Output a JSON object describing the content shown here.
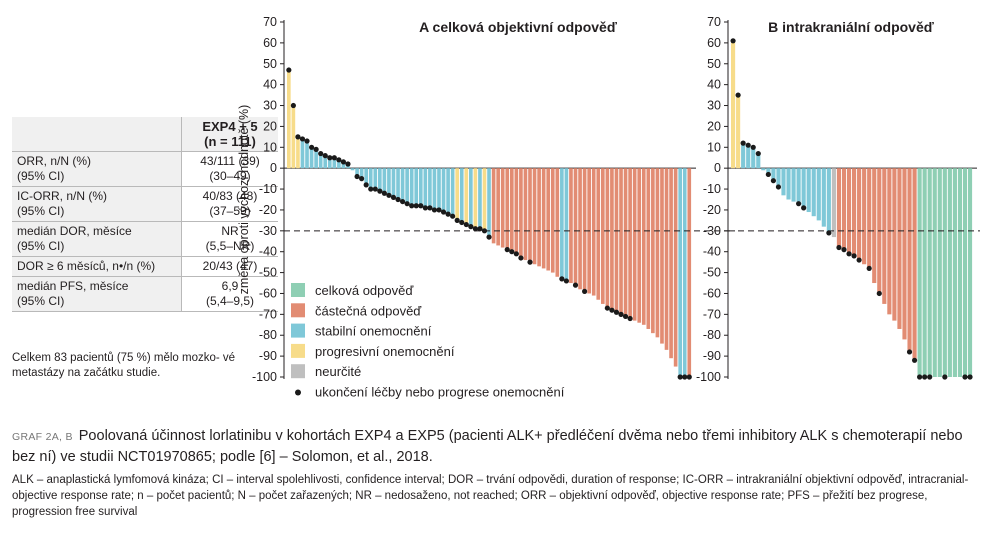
{
  "stats_table": {
    "header": [
      "EXP4 + 5",
      "(n = 111)"
    ],
    "rows": [
      {
        "label": "ORR, n/N (%)",
        "label2": "(95% CI)",
        "value": "43/111 (39)",
        "value2": "(30–49)"
      },
      {
        "label": "IC-ORR, n/N (%)",
        "label2": "(95% CI)",
        "value": "40/83 (48)",
        "value2": "(37–59)"
      },
      {
        "label": "medián DOR, měsíce",
        "label2": "(95% CI)",
        "value": "NR",
        "value2": "(5,5–NR)"
      },
      {
        "label": "DOR ≥ 6 měsíců, n•/n (%)",
        "label2": "",
        "value": "20/43 (47)",
        "value2": ""
      },
      {
        "label": "medián PFS, měsíce",
        "label2": "(95% CI)",
        "value": "6,9",
        "value2": "(5,4–9,5)"
      }
    ],
    "note": "Celkem 83 pacientů (75 %) mělo mozko- vé metastázy na začátku studie."
  },
  "caption": {
    "tag": "GRAF 2A, B",
    "text": "Poolovaná účinnost lorlatinibu v kohortách EXP4 a EXP5 (pacienti ALK+ předléčení dvěma nebo třemi inhibitory ALK s chemoterapií nebo bez ní) ve studii NCT01970865; podle [6] – Solomon, et al., 2018."
  },
  "abbreviations": "ALK – anaplastická lymfomová kináza; CI – interval spolehlivosti, confidence interval; DOR – trvání odpovědi, duration of response; IC-ORR – intrakraniální objektivní odpověď, intracranial-objective response rate; n – počet pacientů; N – počet zařazených; NR – nedosaženo, not reached; ORR – objektivní odpověď, objective response rate; PFS – přežití bez progrese, progression free survival",
  "colors": {
    "CR": "#8fcfb4",
    "PR": "#e28c73",
    "SD": "#7fc8d8",
    "PD": "#f7dc8a",
    "NE": "#bfbfbf",
    "marker": "#1a1a1a"
  },
  "chart_data": [
    {
      "type": "bar",
      "title": "A  celková objektivní odpověď",
      "ylabel": "změna oproti výchozí hodnotě (%)",
      "ylim": [
        -100,
        70
      ],
      "yticks": [
        70,
        60,
        50,
        40,
        30,
        20,
        10,
        0,
        -10,
        -20,
        -30,
        -40,
        -50,
        -60,
        -70,
        -80,
        -90,
        -100
      ],
      "reference_line": -30,
      "legend": [
        {
          "key": "CR",
          "label": "celková odpověď"
        },
        {
          "key": "PR",
          "label": "částečná odpověď"
        },
        {
          "key": "SD",
          "label": "stabilní onemocnění"
        },
        {
          "key": "PD",
          "label": "progresivní onemocnění"
        },
        {
          "key": "NE",
          "label": "neurčité"
        },
        {
          "key": "marker",
          "label": "ukončení léčby nebo progrese onemocnění"
        }
      ],
      "bars": [
        {
          "v": 47,
          "c": "PD",
          "m": true
        },
        {
          "v": 30,
          "c": "PD",
          "m": true
        },
        {
          "v": 15,
          "c": "PD",
          "m": true
        },
        {
          "v": 14,
          "c": "SD",
          "m": true
        },
        {
          "v": 13,
          "c": "SD",
          "m": true
        },
        {
          "v": 10,
          "c": "SD",
          "m": true
        },
        {
          "v": 9,
          "c": "SD",
          "m": true
        },
        {
          "v": 7,
          "c": "SD",
          "m": true
        },
        {
          "v": 6,
          "c": "SD",
          "m": true
        },
        {
          "v": 5,
          "c": "SD",
          "m": true
        },
        {
          "v": 5,
          "c": "SD",
          "m": true
        },
        {
          "v": 4,
          "c": "SD",
          "m": true
        },
        {
          "v": 3,
          "c": "SD",
          "m": true
        },
        {
          "v": 2,
          "c": "SD",
          "m": true
        },
        {
          "v": -1,
          "c": "SD",
          "m": false
        },
        {
          "v": -4,
          "c": "SD",
          "m": true
        },
        {
          "v": -5,
          "c": "SD",
          "m": true
        },
        {
          "v": -8,
          "c": "SD",
          "m": true
        },
        {
          "v": -10,
          "c": "SD",
          "m": true
        },
        {
          "v": -10,
          "c": "SD",
          "m": true
        },
        {
          "v": -11,
          "c": "SD",
          "m": true
        },
        {
          "v": -12,
          "c": "SD",
          "m": true
        },
        {
          "v": -13,
          "c": "SD",
          "m": true
        },
        {
          "v": -14,
          "c": "SD",
          "m": true
        },
        {
          "v": -15,
          "c": "SD",
          "m": true
        },
        {
          "v": -16,
          "c": "SD",
          "m": true
        },
        {
          "v": -17,
          "c": "SD",
          "m": true
        },
        {
          "v": -18,
          "c": "SD",
          "m": true
        },
        {
          "v": -18,
          "c": "SD",
          "m": true
        },
        {
          "v": -18,
          "c": "SD",
          "m": true
        },
        {
          "v": -19,
          "c": "SD",
          "m": true
        },
        {
          "v": -19,
          "c": "SD",
          "m": true
        },
        {
          "v": -20,
          "c": "SD",
          "m": true
        },
        {
          "v": -20,
          "c": "SD",
          "m": true
        },
        {
          "v": -21,
          "c": "SD",
          "m": true
        },
        {
          "v": -22,
          "c": "SD",
          "m": true
        },
        {
          "v": -23,
          "c": "SD",
          "m": true
        },
        {
          "v": -25,
          "c": "PD",
          "m": true
        },
        {
          "v": -26,
          "c": "SD",
          "m": true
        },
        {
          "v": -27,
          "c": "PD",
          "m": true
        },
        {
          "v": -28,
          "c": "SD",
          "m": true
        },
        {
          "v": -29,
          "c": "PD",
          "m": true
        },
        {
          "v": -29,
          "c": "SD",
          "m": true
        },
        {
          "v": -30,
          "c": "PD",
          "m": true
        },
        {
          "v": -33,
          "c": "SD",
          "m": true
        },
        {
          "v": -36,
          "c": "PR",
          "m": false
        },
        {
          "v": -37,
          "c": "PR",
          "m": false
        },
        {
          "v": -38,
          "c": "PR",
          "m": false
        },
        {
          "v": -39,
          "c": "PR",
          "m": true
        },
        {
          "v": -40,
          "c": "PR",
          "m": true
        },
        {
          "v": -41,
          "c": "PR",
          "m": true
        },
        {
          "v": -43,
          "c": "PR",
          "m": true
        },
        {
          "v": -44,
          "c": "PR",
          "m": false
        },
        {
          "v": -45,
          "c": "PR",
          "m": true
        },
        {
          "v": -46,
          "c": "PR",
          "m": false
        },
        {
          "v": -47,
          "c": "PR",
          "m": false
        },
        {
          "v": -48,
          "c": "PR",
          "m": false
        },
        {
          "v": -49,
          "c": "PR",
          "m": false
        },
        {
          "v": -50,
          "c": "PR",
          "m": false
        },
        {
          "v": -52,
          "c": "PR",
          "m": false
        },
        {
          "v": -53,
          "c": "SD",
          "m": true
        },
        {
          "v": -54,
          "c": "SD",
          "m": true
        },
        {
          "v": -55,
          "c": "PR",
          "m": false
        },
        {
          "v": -56,
          "c": "PR",
          "m": true
        },
        {
          "v": -58,
          "c": "PR",
          "m": false
        },
        {
          "v": -59,
          "c": "PR",
          "m": true
        },
        {
          "v": -60,
          "c": "PR",
          "m": false
        },
        {
          "v": -61,
          "c": "PR",
          "m": false
        },
        {
          "v": -63,
          "c": "PR",
          "m": false
        },
        {
          "v": -65,
          "c": "PR",
          "m": false
        },
        {
          "v": -67,
          "c": "PR",
          "m": true
        },
        {
          "v": -68,
          "c": "PR",
          "m": true
        },
        {
          "v": -69,
          "c": "PR",
          "m": true
        },
        {
          "v": -70,
          "c": "PR",
          "m": true
        },
        {
          "v": -71,
          "c": "PR",
          "m": true
        },
        {
          "v": -72,
          "c": "PR",
          "m": true
        },
        {
          "v": -73,
          "c": "PR",
          "m": false
        },
        {
          "v": -74,
          "c": "PR",
          "m": false
        },
        {
          "v": -75,
          "c": "PR",
          "m": false
        },
        {
          "v": -77,
          "c": "PR",
          "m": false
        },
        {
          "v": -79,
          "c": "PR",
          "m": false
        },
        {
          "v": -81,
          "c": "PR",
          "m": false
        },
        {
          "v": -84,
          "c": "PR",
          "m": false
        },
        {
          "v": -87,
          "c": "PR",
          "m": false
        },
        {
          "v": -91,
          "c": "PR",
          "m": false
        },
        {
          "v": -95,
          "c": "PR",
          "m": false
        },
        {
          "v": -100,
          "c": "SD",
          "m": true
        },
        {
          "v": -100,
          "c": "SD",
          "m": true
        },
        {
          "v": -100,
          "c": "PR",
          "m": true
        }
      ]
    },
    {
      "type": "bar",
      "title": "B  intrakraniální odpověď",
      "ylim": [
        -100,
        70
      ],
      "yticks": [
        70,
        60,
        50,
        40,
        30,
        20,
        10,
        0,
        -10,
        -20,
        -30,
        -40,
        -50,
        -60,
        -70,
        -80,
        -90,
        -100
      ],
      "reference_line": -30,
      "bars": [
        {
          "v": 61,
          "c": "PD",
          "m": true
        },
        {
          "v": 35,
          "c": "PD",
          "m": true
        },
        {
          "v": 12,
          "c": "SD",
          "m": true
        },
        {
          "v": 11,
          "c": "SD",
          "m": true
        },
        {
          "v": 10,
          "c": "SD",
          "m": true
        },
        {
          "v": 7,
          "c": "SD",
          "m": true
        },
        {
          "v": -1,
          "c": "SD",
          "m": false
        },
        {
          "v": -3,
          "c": "SD",
          "m": true
        },
        {
          "v": -6,
          "c": "SD",
          "m": true
        },
        {
          "v": -9,
          "c": "SD",
          "m": true
        },
        {
          "v": -13,
          "c": "SD",
          "m": false
        },
        {
          "v": -15,
          "c": "SD",
          "m": false
        },
        {
          "v": -16,
          "c": "SD",
          "m": false
        },
        {
          "v": -17,
          "c": "SD",
          "m": true
        },
        {
          "v": -19,
          "c": "SD",
          "m": true
        },
        {
          "v": -21,
          "c": "SD",
          "m": false
        },
        {
          "v": -23,
          "c": "SD",
          "m": false
        },
        {
          "v": -25,
          "c": "SD",
          "m": false
        },
        {
          "v": -28,
          "c": "SD",
          "m": false
        },
        {
          "v": -31,
          "c": "SD",
          "m": true
        },
        {
          "v": -33,
          "c": "NE",
          "m": false
        },
        {
          "v": -38,
          "c": "PR",
          "m": true
        },
        {
          "v": -39,
          "c": "PR",
          "m": true
        },
        {
          "v": -41,
          "c": "PR",
          "m": true
        },
        {
          "v": -42,
          "c": "PR",
          "m": true
        },
        {
          "v": -44,
          "c": "PR",
          "m": true
        },
        {
          "v": -46,
          "c": "PR",
          "m": false
        },
        {
          "v": -48,
          "c": "PR",
          "m": true
        },
        {
          "v": -55,
          "c": "PR",
          "m": false
        },
        {
          "v": -60,
          "c": "PR",
          "m": true
        },
        {
          "v": -65,
          "c": "PR",
          "m": false
        },
        {
          "v": -70,
          "c": "PR",
          "m": false
        },
        {
          "v": -73,
          "c": "PR",
          "m": false
        },
        {
          "v": -77,
          "c": "PR",
          "m": false
        },
        {
          "v": -82,
          "c": "PR",
          "m": false
        },
        {
          "v": -88,
          "c": "PR",
          "m": true
        },
        {
          "v": -92,
          "c": "PR",
          "m": true
        },
        {
          "v": -100,
          "c": "CR",
          "m": true
        },
        {
          "v": -100,
          "c": "CR",
          "m": true
        },
        {
          "v": -100,
          "c": "CR",
          "m": true
        },
        {
          "v": -100,
          "c": "CR",
          "m": false
        },
        {
          "v": -100,
          "c": "CR",
          "m": false
        },
        {
          "v": -100,
          "c": "CR",
          "m": true
        },
        {
          "v": -100,
          "c": "CR",
          "m": false
        },
        {
          "v": -100,
          "c": "CR",
          "m": false
        },
        {
          "v": -100,
          "c": "CR",
          "m": false
        },
        {
          "v": -100,
          "c": "CR",
          "m": true
        },
        {
          "v": -100,
          "c": "CR",
          "m": true
        }
      ]
    }
  ]
}
